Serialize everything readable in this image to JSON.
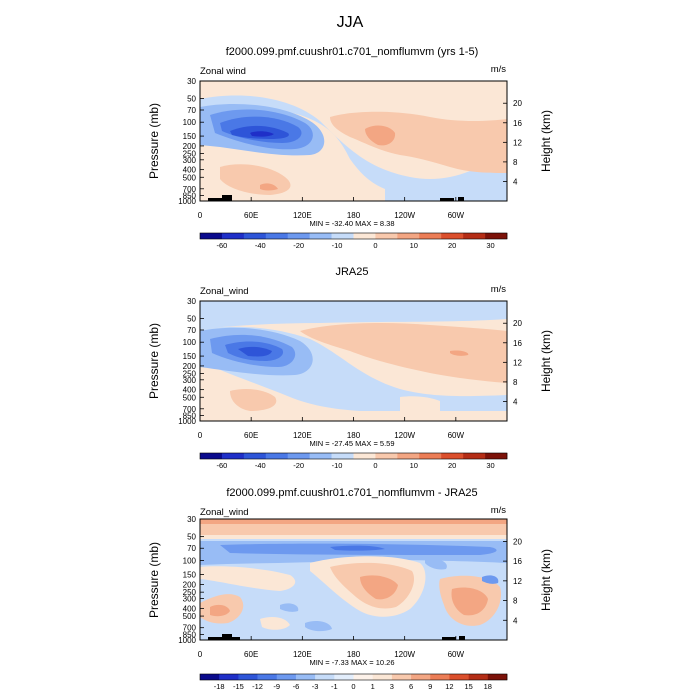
{
  "figure": {
    "title": "JJA"
  },
  "colors": {
    "wind_scale": [
      "#0a0a8c",
      "#1f2fc8",
      "#2e55d8",
      "#4a78e6",
      "#6d99ef",
      "#98bcf5",
      "#c6dcf9",
      "#fbe7d6",
      "#f8c9ad",
      "#f3a683",
      "#ec7d56",
      "#db4f2c",
      "#b42d16",
      "#7c1209"
    ],
    "diff_scale": [
      "#0a0a8c",
      "#1f2fc8",
      "#2e55d8",
      "#4a78e6",
      "#6d99ef",
      "#98bcf5",
      "#c6dcf9",
      "#e3eefc",
      "#fdf2ea",
      "#fbe7d6",
      "#f8c9ad",
      "#f3a683",
      "#ec7d56",
      "#db4f2c",
      "#b42d16",
      "#7c1209"
    ]
  },
  "chart_data": [
    {
      "type": "heatmap",
      "title": "f2000.099.pmf.cuushr01.c701_nomflumvm (yrs 1-5)",
      "field_label": "Zonal wind",
      "units": "m/s",
      "ylabel": "Pressure (mb)",
      "y2label": "Height (km)",
      "xticks": [
        "0",
        "60E",
        "120E",
        "180",
        "120W",
        "60W"
      ],
      "yticks": [
        "30",
        "50",
        "70",
        "100",
        "150",
        "200",
        "250",
        "300",
        "400",
        "500",
        "700",
        "850",
        "1000"
      ],
      "y2ticks": [
        "20",
        "16",
        "12",
        "8",
        "4"
      ],
      "stats": "MIN = -32.40   MAX =   8.38",
      "colorbar": [
        "-60",
        "-40",
        "-20",
        "-10",
        "0",
        "10",
        "20",
        "30"
      ],
      "min": -32.4,
      "max": 8.38
    },
    {
      "type": "heatmap",
      "title": "JRA25",
      "field_label": "Zonal_wind",
      "units": "m/s",
      "ylabel": "Pressure (mb)",
      "y2label": "Height (km)",
      "xticks": [
        "0",
        "60E",
        "120E",
        "180",
        "120W",
        "60W"
      ],
      "yticks": [
        "30",
        "50",
        "70",
        "100",
        "150",
        "200",
        "250",
        "300",
        "400",
        "500",
        "700",
        "850",
        "1000"
      ],
      "y2ticks": [
        "20",
        "16",
        "12",
        "8",
        "4"
      ],
      "stats": "MIN = -27.45   MAX =   5.59",
      "colorbar": [
        "-60",
        "-40",
        "-20",
        "-10",
        "0",
        "10",
        "20",
        "30"
      ],
      "min": -27.45,
      "max": 5.59
    },
    {
      "type": "heatmap",
      "title": "f2000.099.pmf.cuushr01.c701_nomflumvm - JRA25",
      "field_label": "Zonal_wind",
      "units": "m/s",
      "ylabel": "Pressure (mb)",
      "y2label": "Height (km)",
      "xticks": [
        "0",
        "60E",
        "120E",
        "180",
        "120W",
        "60W"
      ],
      "yticks": [
        "30",
        "50",
        "70",
        "100",
        "150",
        "200",
        "250",
        "300",
        "400",
        "500",
        "700",
        "850",
        "1000"
      ],
      "y2ticks": [
        "20",
        "16",
        "12",
        "8",
        "4"
      ],
      "stats": "MIN = -7.33   MAX =  10.26",
      "colorbar": [
        "-18",
        "-15",
        "-12",
        "-9",
        "-6",
        "-3",
        "-1",
        "0",
        "1",
        "3",
        "6",
        "9",
        "12",
        "15",
        "18"
      ],
      "min": -7.33,
      "max": 10.26
    }
  ]
}
